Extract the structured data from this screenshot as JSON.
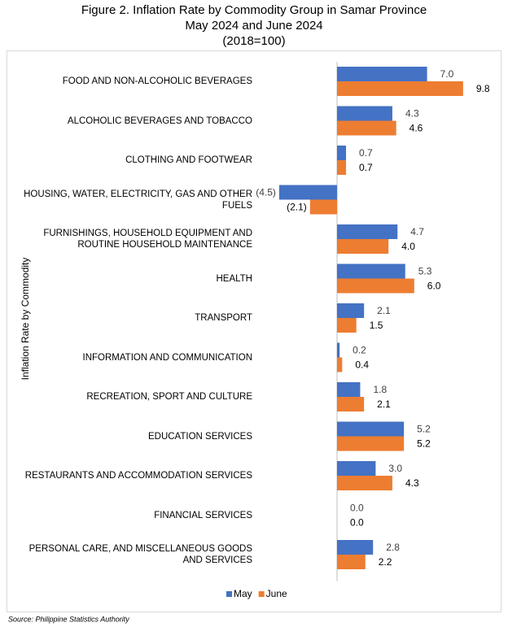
{
  "chart_data": {
    "type": "hbar",
    "title": "Figure 2. Inflation Rate by Commodity Group in Samar Province",
    "subtitle": "May 2024 and June 2024",
    "base_note": "(2018=100)",
    "y_axis_label": "Inflation Rate by Commodity",
    "source": "Source: Philippine Statistics Authority",
    "categories": [
      "FOOD AND NON-ALCOHOLIC BEVERAGES",
      "ALCOHOLIC BEVERAGES AND TOBACCO",
      "CLOTHING AND FOOTWEAR",
      "HOUSING, WATER, ELECTRICITY, GAS AND OTHER FUELS",
      "FURNISHINGS, HOUSEHOLD EQUIPMENT AND ROUTINE HOUSEHOLD MAINTENANCE",
      "HEALTH",
      "TRANSPORT",
      "INFORMATION AND COMMUNICATION",
      "RECREATION, SPORT AND CULTURE",
      "EDUCATION SERVICES",
      "RESTAURANTS AND ACCOMMODATION SERVICES",
      "FINANCIAL SERVICES",
      "PERSONAL CARE, AND MISCELLANEOUS GOODS AND SERVICES"
    ],
    "series": [
      {
        "name": "May",
        "color": "#4472c4",
        "values": [
          7.0,
          4.3,
          0.7,
          -4.5,
          4.7,
          5.3,
          2.1,
          0.2,
          1.8,
          5.2,
          3.0,
          0.0,
          2.8
        ],
        "value_labels": [
          "7.0",
          "4.3",
          "0.7",
          "(4.5)",
          "4.7",
          "5.3",
          "2.1",
          "0.2",
          "1.8",
          "5.2",
          "3.0",
          "0.0",
          "2.8"
        ]
      },
      {
        "name": "June",
        "color": "#ed7d31",
        "values": [
          9.8,
          4.6,
          0.7,
          -2.1,
          4.0,
          6.0,
          1.5,
          0.4,
          2.1,
          5.2,
          4.3,
          0.0,
          2.2
        ],
        "value_labels": [
          "9.8",
          "4.6",
          "0.7",
          "(2.1)",
          "4.0",
          "6.0",
          "1.5",
          "0.4",
          "2.1",
          "5.2",
          "4.3",
          "0.0",
          "2.2"
        ]
      }
    ],
    "xlim": [
      -5,
      10
    ]
  }
}
